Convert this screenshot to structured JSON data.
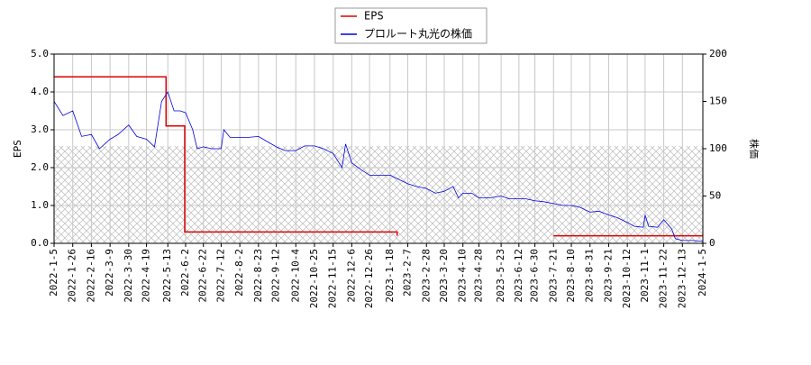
{
  "chart_data": {
    "type": "line",
    "xlim": [
      "2022-1-5",
      "2024-1-5"
    ],
    "xticks": [
      "2022-1-5",
      "2022-1-26",
      "2022-2-16",
      "2022-3-9",
      "2022-3-30",
      "2022-4-19",
      "2022-5-13",
      "2022-6-2",
      "2022-6-22",
      "2022-7-12",
      "2022-8-2",
      "2022-8-23",
      "2022-9-12",
      "2022-10-4",
      "2022-10-25",
      "2022-11-15",
      "2022-12-6",
      "2022-12-26",
      "2023-1-18",
      "2023-2-7",
      "2023-2-28",
      "2023-3-20",
      "2023-4-10",
      "2023-4-28",
      "2023-5-23",
      "2023-6-12",
      "2023-6-30",
      "2023-7-21",
      "2023-8-10",
      "2023-8-31",
      "2023-9-21",
      "2023-10-12",
      "2023-11-1",
      "2023-11-22",
      "2023-12-13",
      "2024-1-5"
    ],
    "ylabel": "EPS",
    "y2label": "株価",
    "ylim": [
      0,
      5
    ],
    "yticks": [
      {
        "value": 0,
        "label": "0.0"
      },
      {
        "value": 1,
        "label": "1.0"
      },
      {
        "value": 2,
        "label": "2.0"
      },
      {
        "value": 3,
        "label": "3.0"
      },
      {
        "value": 4,
        "label": "4.0"
      },
      {
        "value": 5,
        "label": "5.0"
      }
    ],
    "y2lim": [
      0,
      200
    ],
    "y2ticks": [
      0,
      50,
      100,
      150,
      200
    ],
    "grid": true,
    "legend": "top",
    "series": [
      {
        "name": "EPS",
        "color": "#dd0000",
        "step": true,
        "x": [
          "2022-1-5",
          "2022-5-11",
          "2022-6-1",
          "2023-1-26",
          "2023-2-2",
          "2023-7-21",
          "2024-1-5"
        ],
        "values": [
          4.4,
          3.1,
          0.3,
          0.2,
          null,
          0.2,
          0.2
        ]
      },
      {
        "name": "プロルート丸光の株価",
        "color": "#0000dd",
        "axis": "y2",
        "x": [
          "2022-1-5",
          "2022-1-15",
          "2022-1-26",
          "2022-2-5",
          "2022-2-16",
          "2022-2-25",
          "2022-3-9",
          "2022-3-18",
          "2022-3-30",
          "2022-4-8",
          "2022-4-19",
          "2022-4-28",
          "2022-5-6",
          "2022-5-13",
          "2022-5-20",
          "2022-5-27",
          "2022-6-2",
          "2022-6-10",
          "2022-6-15",
          "2022-6-22",
          "2022-7-1",
          "2022-7-12",
          "2022-7-15",
          "2022-7-22",
          "2022-8-2",
          "2022-8-12",
          "2022-8-23",
          "2022-9-1",
          "2022-9-12",
          "2022-9-22",
          "2022-10-4",
          "2022-10-14",
          "2022-10-25",
          "2022-11-4",
          "2022-11-15",
          "2022-11-25",
          "2022-11-29",
          "2022-12-6",
          "2022-12-16",
          "2022-12-26",
          "2023-1-10",
          "2023-1-18",
          "2023-1-27",
          "2023-2-7",
          "2023-2-17",
          "2023-2-28",
          "2023-3-10",
          "2023-3-20",
          "2023-3-30",
          "2023-4-5",
          "2023-4-10",
          "2023-4-20",
          "2023-4-28",
          "2023-5-10",
          "2023-5-23",
          "2023-6-1",
          "2023-6-12",
          "2023-6-20",
          "2023-6-30",
          "2023-7-10",
          "2023-7-21",
          "2023-8-1",
          "2023-8-10",
          "2023-8-20",
          "2023-8-31",
          "2023-9-10",
          "2023-9-21",
          "2023-10-1",
          "2023-10-12",
          "2023-10-20",
          "2023-10-30",
          "2023-11-1",
          "2023-11-5",
          "2023-11-15",
          "2023-11-22",
          "2023-12-1",
          "2023-12-5",
          "2023-12-13",
          "2023-12-25",
          "2024-1-5"
        ],
        "values": [
          150,
          135,
          140,
          113,
          115,
          100,
          110,
          115,
          125,
          113,
          110,
          102,
          150,
          160,
          140,
          140,
          138,
          120,
          100,
          102,
          100,
          100,
          120,
          112,
          112,
          112,
          113,
          108,
          102,
          98,
          98,
          103,
          103,
          100,
          95,
          80,
          105,
          85,
          78,
          72,
          72,
          72,
          68,
          63,
          60,
          58,
          53,
          55,
          60,
          48,
          53,
          53,
          48,
          48,
          50,
          47,
          47,
          47,
          45,
          44,
          42,
          40,
          40,
          38,
          33,
          34,
          30,
          27,
          22,
          18,
          17,
          30,
          18,
          17,
          25,
          15,
          5,
          3,
          3,
          2
        ]
      }
    ]
  }
}
